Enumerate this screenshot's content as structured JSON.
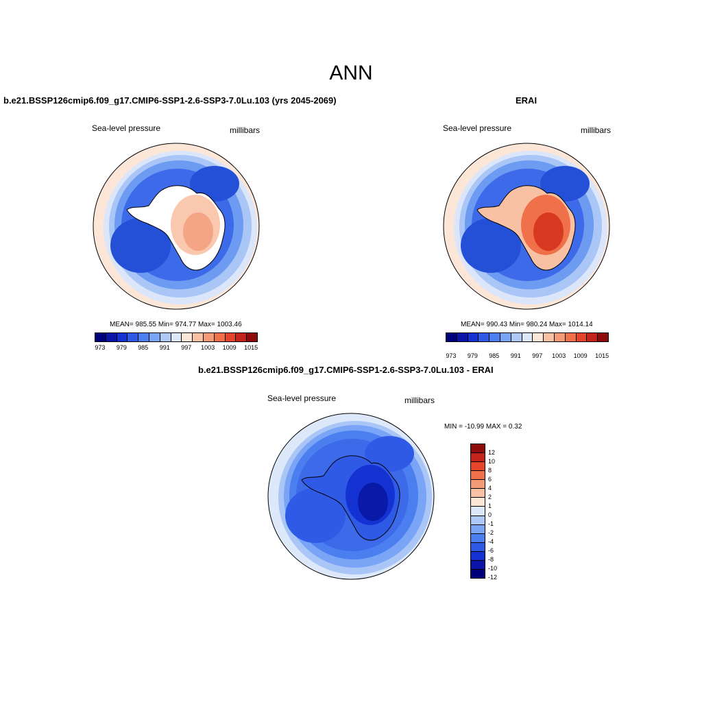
{
  "main_title": "ANN",
  "panels": {
    "model": {
      "title": "b.e21.BSSP126cmip6.f09_g17.CMIP6-SSP1-2.6-SSP3-7.0Lu.103 (yrs 2045-2069)",
      "variable": "Sea-level pressure",
      "units": "millibars",
      "stats": "MEAN= 985.55  Min= 974.77  Max= 1003.46"
    },
    "obs": {
      "title": "ERAI",
      "variable": "Sea-level pressure",
      "units": "millibars",
      "stats": "MEAN= 990.43  Min= 980.24  Max= 1014.14"
    },
    "diff": {
      "title": "b.e21.BSSP126cmip6.f09_g17.CMIP6-SSP1-2.6-SSP3-7.0Lu.103 - ERAI",
      "variable": "Sea-level pressure",
      "units": "millibars",
      "stats": "MIN = -10.99 MAX =   0.32"
    }
  },
  "abs_colorbar": {
    "colors": [
      "#00007a",
      "#0a14a8",
      "#1432d2",
      "#2e5ae6",
      "#4b7ff0",
      "#7aa4f5",
      "#aec8f8",
      "#dde8fb",
      "#fde7d6",
      "#f9c1a4",
      "#f59a77",
      "#f0704a",
      "#e4442a",
      "#c3241a",
      "#8e0b0b"
    ],
    "tick_labels": [
      "973",
      "979",
      "985",
      "991",
      "997",
      "1003",
      "1009",
      "1015"
    ]
  },
  "diff_colorbar": {
    "colors_top_to_bottom": [
      "#8e0b0b",
      "#c3241a",
      "#e4442a",
      "#f0704a",
      "#f59a77",
      "#f9c1a4",
      "#fde7d6",
      "#dde8fb",
      "#aec8f8",
      "#7aa4f5",
      "#4b7ff0",
      "#2e5ae6",
      "#1432d2",
      "#0a14a8",
      "#00007a"
    ],
    "tick_labels": [
      "12",
      "10",
      "8",
      "6",
      "4",
      "2",
      "1",
      "0",
      "-1",
      "-2",
      "-4",
      "-6",
      "-8",
      "-10",
      "-12"
    ]
  },
  "map_colors": {
    "model": {
      "outer": "#fce6d8",
      "ring1": "#dbe6fb",
      "ring2": "#a9c6f7",
      "ring3": "#6d9bf2",
      "ring4": "#3c6ae8",
      "low": "#2450d8",
      "continent": "#ffffff",
      "high1": "#f9c8ae",
      "high2": "#f4a585"
    },
    "obs": {
      "outer": "#fce6d8",
      "ring1": "#dbe6fb",
      "ring2": "#a9c6f7",
      "ring3": "#6d9bf2",
      "ring4": "#3c6ae8",
      "low": "#2450d8",
      "continent": "#f9c1a4",
      "high1": "#f0704a",
      "high2": "#d73a20"
    },
    "diff": {
      "outer": "#dde8fb",
      "ring1": "#a9c6f7",
      "ring2": "#7aa4f5",
      "ring3": "#4b7ff0",
      "ring4": "#3c6ae8",
      "low": "#2e5ae6",
      "continent": "#2e5ae6",
      "high1": "#1432d2",
      "high2": "#0a1aa8"
    }
  }
}
